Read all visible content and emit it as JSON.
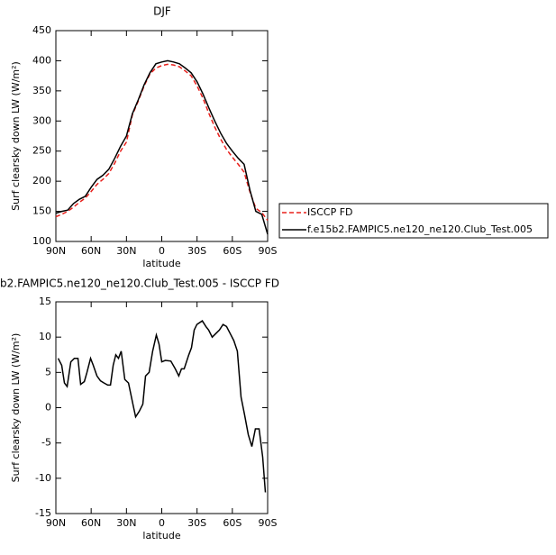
{
  "chart_data": [
    {
      "type": "line",
      "title": "DJF",
      "xlabel": "latitude",
      "ylabel": "Surf clearsky down LW (W/m²)",
      "xlim": [
        90,
        -90
      ],
      "ylim": [
        100,
        450
      ],
      "xticks": [
        {
          "value": 90,
          "label": "90N"
        },
        {
          "value": 60,
          "label": "60N"
        },
        {
          "value": 30,
          "label": "30N"
        },
        0,
        {
          "value": -30,
          "label": "30S"
        },
        {
          "value": -60,
          "label": "60S"
        },
        {
          "value": -90,
          "label": "90S"
        }
      ],
      "yticks": [
        100,
        150,
        200,
        250,
        300,
        350,
        400,
        450
      ],
      "x": [
        90,
        85,
        80,
        75,
        70,
        65,
        60,
        55,
        50,
        45,
        40,
        35,
        30,
        25,
        20,
        15,
        10,
        5,
        0,
        -5,
        -10,
        -15,
        -20,
        -25,
        -30,
        -35,
        -40,
        -45,
        -50,
        -55,
        -60,
        -65,
        -70,
        -75,
        -80,
        -85,
        -90
      ],
      "series": [
        {
          "name": "ISCCP FD",
          "color": "#e8201c",
          "dashed": true,
          "values": [
            141,
            145,
            150,
            157,
            165,
            172,
            183,
            195,
            203,
            213,
            230,
            250,
            265,
            310,
            333,
            358,
            378,
            388,
            392,
            394,
            393,
            390,
            383,
            375,
            358,
            338,
            313,
            290,
            270,
            253,
            240,
            228,
            215,
            182,
            155,
            148,
            135
          ]
        },
        {
          "name": "f.e15b2.FAMPIC5.ne120_ne120.Club_Test.005",
          "color": "#000000",
          "dashed": false,
          "values": [
            147,
            150,
            152,
            163,
            170,
            175,
            190,
            203,
            210,
            220,
            238,
            258,
            275,
            312,
            335,
            360,
            380,
            395,
            398,
            400,
            398,
            395,
            388,
            380,
            365,
            345,
            322,
            300,
            280,
            263,
            250,
            238,
            228,
            185,
            150,
            145,
            112
          ]
        }
      ]
    },
    {
      "type": "line",
      "title": "b2.FAMPIC5.ne120_ne120.Club_Test.005 - ISCCP FD",
      "xlabel": "latitude",
      "ylabel": "Surf clearsky down LW (W/m²)",
      "xlim": [
        90,
        -90
      ],
      "ylim": [
        -15,
        15
      ],
      "xticks": [
        {
          "value": 90,
          "label": "90N"
        },
        {
          "value": 60,
          "label": "60N"
        },
        {
          "value": 30,
          "label": "30N"
        },
        0,
        {
          "value": -30,
          "label": "30S"
        },
        {
          "value": -60,
          "label": "60S"
        },
        {
          "value": -90,
          "label": "90S"
        }
      ],
      "yticks": [
        -15,
        -10,
        -5,
        0,
        5,
        10,
        15
      ],
      "x": [
        88.1,
        85,
        82.7,
        80.4,
        77.3,
        74.3,
        71.2,
        68.9,
        65.8,
        63.6,
        60.5,
        58.2,
        55.1,
        52.1,
        49,
        45.9,
        43.6,
        41.3,
        39.1,
        36.8,
        34.5,
        31.4,
        28.3,
        24.5,
        22.2,
        19.1,
        16.1,
        13.8,
        10.7,
        7.7,
        4.6,
        2.3,
        0,
        -3.1,
        -7.7,
        -11.5,
        -14.5,
        -16.8,
        -19.1,
        -23,
        -25.3,
        -27.6,
        -29.9,
        -34.5,
        -37.5,
        -39.8,
        -42.9,
        -45.9,
        -49,
        -52.1,
        -55.1,
        -58.2,
        -61.3,
        -64.3,
        -67.4,
        -70.4,
        -73.5,
        -76.6,
        -79.6,
        -82.7,
        -85.8,
        -88.1
      ],
      "color": "#000000",
      "values": [
        7,
        6,
        3.5,
        3,
        6.5,
        7,
        7,
        3.3,
        3.7,
        5,
        7,
        6,
        4.5,
        3.8,
        3.5,
        3.2,
        3.2,
        6,
        7.5,
        7,
        8,
        4,
        3.5,
        0.5,
        -1.3,
        -0.5,
        0.5,
        4.5,
        5,
        8,
        10.3,
        9,
        6.5,
        6.7,
        6.6,
        5.5,
        4.5,
        5.5,
        5.5,
        7.5,
        8.5,
        11,
        11.8,
        12.3,
        11.5,
        11,
        10,
        10.5,
        11,
        11.8,
        11.5,
        10.5,
        9.5,
        8,
        1.5,
        -1,
        -3.8,
        -5.5,
        -3,
        -3,
        -7,
        -12
      ]
    }
  ]
}
